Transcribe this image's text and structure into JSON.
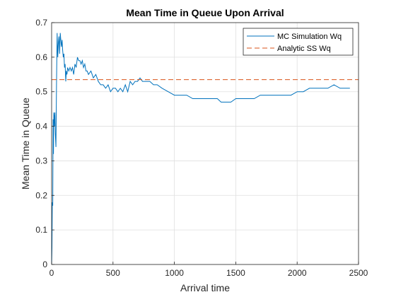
{
  "chart_data": {
    "type": "line",
    "title": "Mean Time in Queue Upon Arrival",
    "xlabel": "Arrival time",
    "ylabel": "Mean Time in Queue",
    "xlim": [
      0,
      2500
    ],
    "ylim": [
      0,
      0.7
    ],
    "xticks": [
      "0",
      "500",
      "1000",
      "1500",
      "2000",
      "2500"
    ],
    "yticks": [
      "0",
      "0.1",
      "0.2",
      "0.3",
      "0.4",
      "0.5",
      "0.6",
      "0.7"
    ],
    "grid": true,
    "legend_position": "top-right",
    "series": [
      {
        "name": "MC Simulation Wq",
        "style": "solid",
        "color": "#0072BD",
        "x": [
          0,
          3,
          6,
          9,
          12,
          15,
          18,
          21,
          24,
          27,
          30,
          35,
          40,
          45,
          50,
          55,
          60,
          65,
          70,
          75,
          80,
          85,
          90,
          95,
          100,
          105,
          110,
          115,
          120,
          125,
          130,
          140,
          150,
          160,
          170,
          180,
          190,
          200,
          210,
          220,
          230,
          240,
          250,
          260,
          270,
          280,
          290,
          300,
          320,
          340,
          360,
          380,
          400,
          420,
          440,
          460,
          480,
          500,
          520,
          540,
          560,
          580,
          600,
          620,
          640,
          660,
          680,
          700,
          720,
          740,
          760,
          780,
          800,
          830,
          860,
          900,
          950,
          1000,
          1050,
          1100,
          1150,
          1200,
          1250,
          1300,
          1350,
          1380,
          1400,
          1430,
          1460,
          1500,
          1550,
          1600,
          1650,
          1700,
          1750,
          1800,
          1850,
          1900,
          1950,
          2000,
          2050,
          2100,
          2150,
          2200,
          2250,
          2300,
          2350,
          2400,
          2430
        ],
        "y": [
          0,
          0.05,
          0.18,
          0.17,
          0.42,
          0.32,
          0.44,
          0.43,
          0.4,
          0.44,
          0.38,
          0.34,
          0.52,
          0.67,
          0.6,
          0.64,
          0.66,
          0.61,
          0.67,
          0.65,
          0.63,
          0.65,
          0.62,
          0.6,
          0.61,
          0.57,
          0.58,
          0.53,
          0.56,
          0.55,
          0.57,
          0.56,
          0.57,
          0.56,
          0.57,
          0.55,
          0.58,
          0.57,
          0.6,
          0.59,
          0.59,
          0.58,
          0.59,
          0.57,
          0.58,
          0.56,
          0.56,
          0.55,
          0.56,
          0.54,
          0.55,
          0.53,
          0.52,
          0.52,
          0.51,
          0.52,
          0.5,
          0.51,
          0.51,
          0.5,
          0.51,
          0.5,
          0.52,
          0.5,
          0.53,
          0.52,
          0.53,
          0.53,
          0.54,
          0.53,
          0.53,
          0.53,
          0.53,
          0.52,
          0.52,
          0.51,
          0.5,
          0.49,
          0.49,
          0.49,
          0.48,
          0.48,
          0.48,
          0.48,
          0.48,
          0.47,
          0.47,
          0.47,
          0.47,
          0.48,
          0.48,
          0.48,
          0.48,
          0.49,
          0.49,
          0.49,
          0.49,
          0.49,
          0.49,
          0.5,
          0.5,
          0.51,
          0.51,
          0.51,
          0.51,
          0.52,
          0.51,
          0.51,
          0.51
        ]
      },
      {
        "name": "Analytic SS Wq",
        "style": "dashed",
        "color": "#D95319",
        "x": [
          0,
          2500
        ],
        "y": [
          0.535,
          0.535
        ]
      }
    ]
  }
}
